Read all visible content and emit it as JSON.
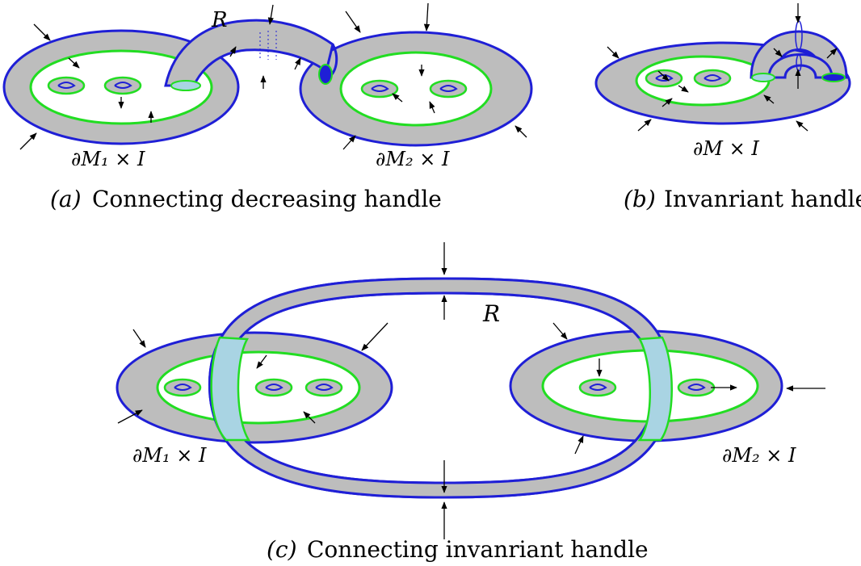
{
  "colors": {
    "surface_fill": "#bdbdbd",
    "boundary_stroke": "#1f1fd6",
    "inner_curve": "#22dd22",
    "handle_overlap": "#a9d4e3",
    "arrow": "#000000"
  },
  "panels": {
    "a": {
      "handle_label": "R",
      "left_label": "∂M₁ × I",
      "right_label": "∂M₂ × I",
      "caption_tag": "(a)",
      "caption_text": "Connecting decreasing handle"
    },
    "b": {
      "surface_label": "∂M × I",
      "caption_tag": "(b)",
      "caption_text": "Invanriant handle"
    },
    "c": {
      "handle_label": "R",
      "left_label": "∂M₁ × I",
      "right_label": "∂M₂ × I",
      "caption_tag": "(c)",
      "caption_text": "Connecting invanriant handle"
    }
  }
}
